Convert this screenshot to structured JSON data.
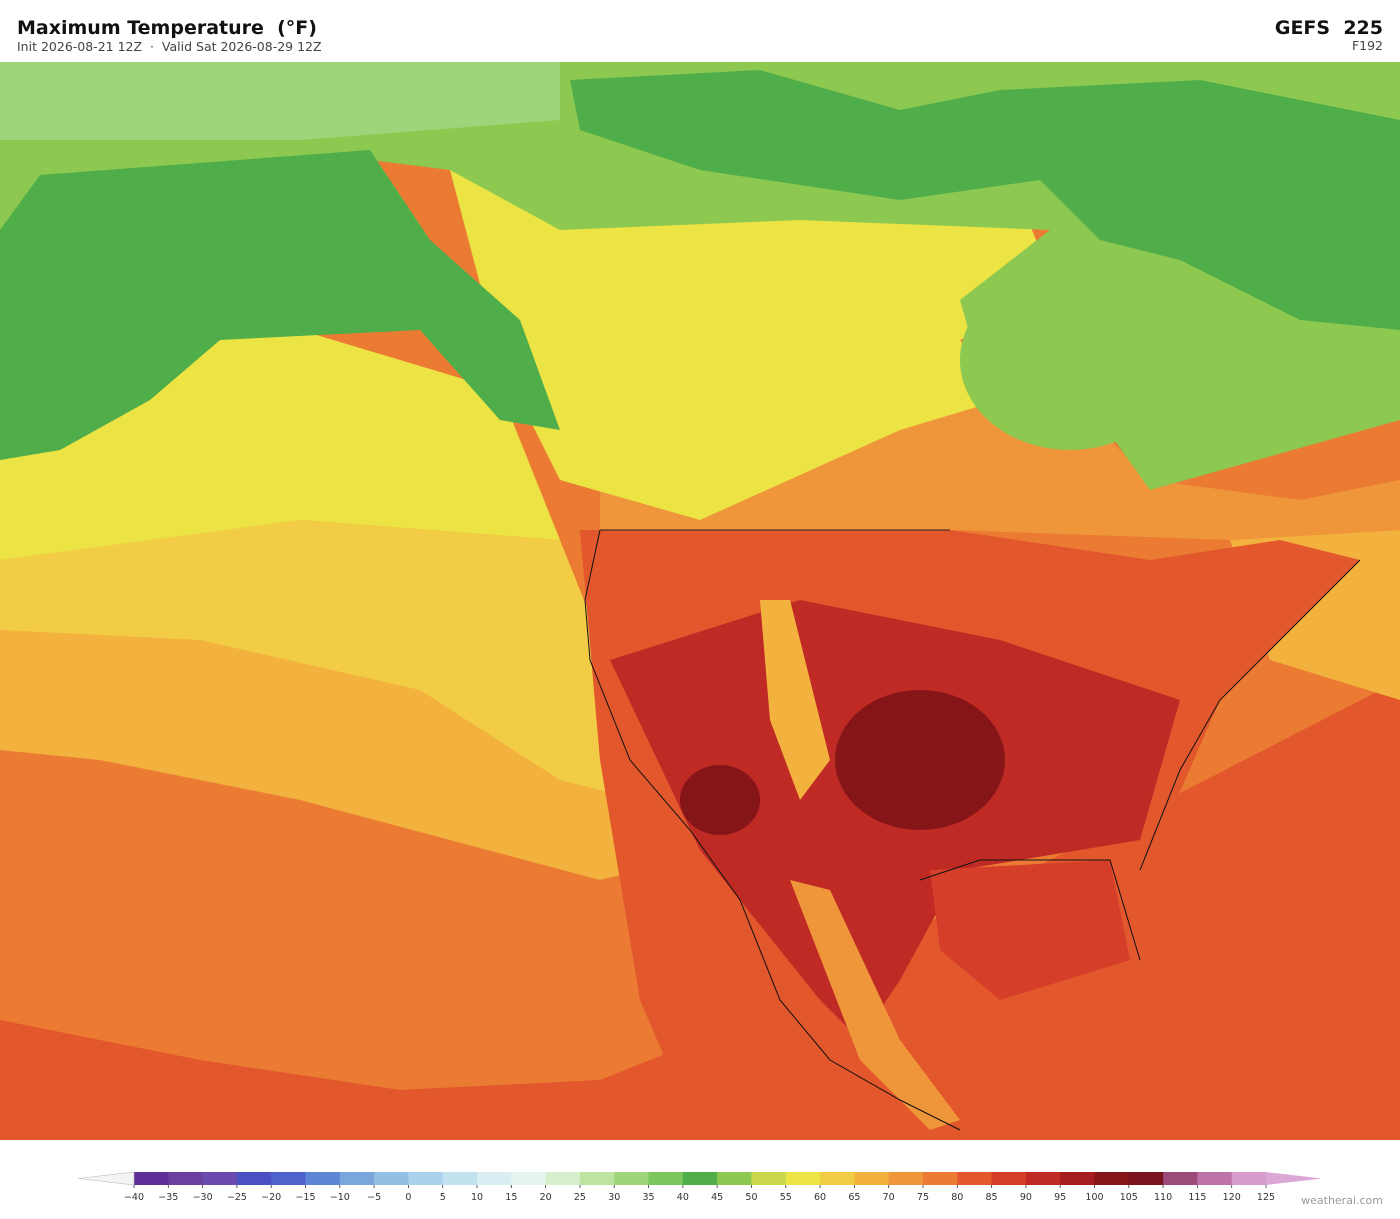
{
  "header": {
    "title": "Maximum Temperature  (°F)",
    "subtitle": "Init 2026-08-21 12Z  ·  Valid Sat 2026-08-29 12Z",
    "model": "GEFS  225",
    "forecast_hour": "F192"
  },
  "colorbar": {
    "ticks": [
      {
        "value": -40,
        "label": "−40"
      },
      {
        "value": -35,
        "label": "−35"
      },
      {
        "value": -30,
        "label": "−30"
      },
      {
        "value": -25,
        "label": "−25"
      },
      {
        "value": -20,
        "label": "−20"
      },
      {
        "value": -15,
        "label": "−15"
      },
      {
        "value": -10,
        "label": "−10"
      },
      {
        "value": -5,
        "label": "−5"
      },
      0,
      5,
      10,
      15,
      20,
      25,
      30,
      35,
      40,
      45,
      50,
      55,
      60,
      65,
      70,
      75,
      80,
      85,
      90,
      95,
      100,
      105,
      110,
      115,
      120,
      125
    ],
    "colors": [
      "#5e2f96",
      "#6b3fa0",
      "#6a4aaf",
      "#4a4fc4",
      "#4f63cf",
      "#5d87d6",
      "#7aa6dc",
      "#93bfe3",
      "#a9d3ec",
      "#c2e2f0",
      "#d8eef2",
      "#e6f4ee",
      "#d6eecb",
      "#bde3a0",
      "#9fd57a",
      "#7cc65e",
      "#4fae4a",
      "#8dc850",
      "#c9d84a",
      "#ece344",
      "#f2cc44",
      "#f2b23d",
      "#ef963a",
      "#eb7a33",
      "#e2572c",
      "#d53e28",
      "#c02a24",
      "#a61d1f",
      "#861518",
      "#7a1520",
      "#9b4a7a",
      "#bd72a8",
      "#d59ccc"
    ],
    "under_color": "#f4f4f4",
    "over_color": "#dba8d6"
  },
  "credit": "weatherai.com"
}
